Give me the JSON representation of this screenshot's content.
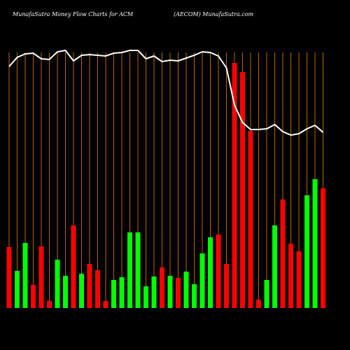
{
  "chart_data": {
    "type": "bar",
    "title": "MunafaSutra  Money Flow  Charts for ACM",
    "subtitle": "(AECOM) MunafaSutra.com",
    "ylim": [
      0,
      360
    ],
    "series": [
      {
        "name": "money flow",
        "kind": "bar",
        "values": [
          87,
          53,
          93,
          33,
          88,
          10,
          69,
          46,
          118,
          49,
          63,
          54,
          10,
          40,
          44,
          108,
          108,
          31,
          45,
          58,
          46,
          43,
          52,
          34,
          78,
          101,
          105,
          63,
          350,
          337,
          253,
          12,
          40,
          118,
          155,
          92,
          81,
          161,
          184,
          171
        ],
        "colors": [
          "#ff0000",
          "#00ff00",
          "#00ff00",
          "#ff0000",
          "#ff0000",
          "#ff0000",
          "#00ff00",
          "#00ff00",
          "#ff0000",
          "#00ff00",
          "#ff0000",
          "#ff0000",
          "#ff0000",
          "#00ff00",
          "#00ff00",
          "#00ff00",
          "#00ff00",
          "#00ff00",
          "#00ff00",
          "#ff0000",
          "#00ff00",
          "#ff0000",
          "#00ff00",
          "#00ff00",
          "#00ff00",
          "#00ff00",
          "#ff0000",
          "#ff0000",
          "#ff0000",
          "#ff0000",
          "#ff0000",
          "#ff0000",
          "#00ff00",
          "#00ff00",
          "#ff0000",
          "#ff0000",
          "#ff0000",
          "#00ff00",
          "#00ff00",
          "#ff0000"
        ]
      },
      {
        "name": "price",
        "kind": "line",
        "color": "#ffffff",
        "values": [
          345,
          358,
          363,
          364,
          356,
          355,
          366,
          368,
          353,
          361,
          362,
          361,
          360,
          364,
          365,
          368,
          368,
          356,
          360,
          352,
          354,
          353,
          357,
          361,
          366,
          365,
          360,
          343,
          290,
          265,
          255,
          255,
          256,
          262,
          252,
          247,
          249,
          256,
          261,
          251
        ]
      }
    ],
    "gridline_color": "#b8650f"
  }
}
